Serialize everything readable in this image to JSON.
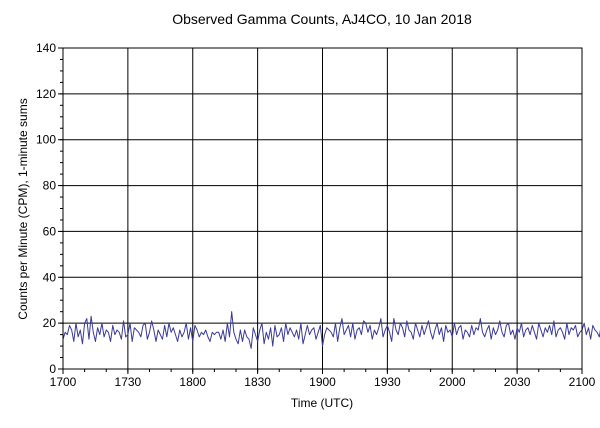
{
  "chart_data": {
    "type": "line",
    "title": "Observed Gamma Counts, AJ4CO, 10 Jan 2018",
    "xlabel": "Time (UTC)",
    "ylabel": "Counts per Minute (CPM), 1-minute sums",
    "xlim": [
      "17:00",
      "21:00"
    ],
    "ylim": [
      0,
      140
    ],
    "x_ticks": [
      "1700",
      "1730",
      "1800",
      "1830",
      "1900",
      "1930",
      "2000",
      "2030",
      "2100"
    ],
    "y_ticks": [
      0,
      20,
      40,
      60,
      80,
      100,
      120,
      140
    ],
    "grid": true,
    "line_color": "#3a3a9a",
    "x_start": "17:00",
    "x_step_minutes": 1,
    "series": [
      {
        "values": [
          13,
          16,
          15,
          19,
          17,
          12,
          20,
          14,
          17,
          11,
          20,
          22,
          13,
          23,
          16,
          12,
          18,
          15,
          20,
          14,
          17,
          16,
          12,
          19,
          15,
          17,
          16,
          13,
          21,
          14,
          15,
          20,
          12,
          18,
          17,
          16,
          14,
          19,
          20,
          13,
          16,
          21,
          17,
          12,
          17,
          15,
          13,
          19,
          14,
          20,
          16,
          18,
          15,
          12,
          17,
          14,
          16,
          20,
          13,
          18,
          12,
          19,
          17,
          14,
          16,
          15,
          17,
          14,
          12,
          16,
          15,
          16,
          16,
          13,
          17,
          12,
          20,
          14,
          25,
          16,
          13,
          11,
          17,
          12,
          17,
          14,
          13,
          9,
          18,
          15,
          12,
          17,
          20,
          11,
          16,
          13,
          18,
          10,
          19,
          14,
          15,
          18,
          12,
          20,
          15,
          18,
          16,
          14,
          17,
          13,
          20,
          11,
          15,
          19,
          15,
          17,
          18,
          13,
          16,
          19,
          10,
          15,
          18,
          17,
          16,
          14,
          20,
          12,
          18,
          22,
          15,
          17,
          19,
          14,
          20,
          13,
          17,
          18,
          15,
          21,
          20,
          16,
          19,
          13,
          17,
          15,
          18,
          22,
          14,
          17,
          19,
          16,
          12,
          22,
          17,
          15,
          20,
          18,
          14,
          21,
          17,
          16,
          13,
          20,
          17,
          14,
          19,
          15,
          18,
          21,
          16,
          13,
          17,
          20,
          15,
          18,
          12,
          19,
          16,
          17,
          14,
          20,
          15,
          18,
          19,
          13,
          17,
          16,
          14,
          19,
          15,
          18,
          17,
          22,
          16,
          14,
          17,
          19,
          13,
          18,
          15,
          17,
          21,
          16,
          14,
          19,
          20,
          15,
          17,
          13,
          18,
          16,
          20,
          14,
          17,
          18,
          15,
          19,
          16,
          13,
          20,
          17,
          14,
          18,
          16,
          19,
          15,
          21,
          14,
          17,
          18,
          16,
          13,
          20,
          15,
          18,
          17,
          19,
          14,
          16,
          17,
          20,
          15,
          18,
          13,
          19,
          17,
          16,
          14,
          20,
          18,
          15,
          17,
          16
        ]
      }
    ]
  }
}
